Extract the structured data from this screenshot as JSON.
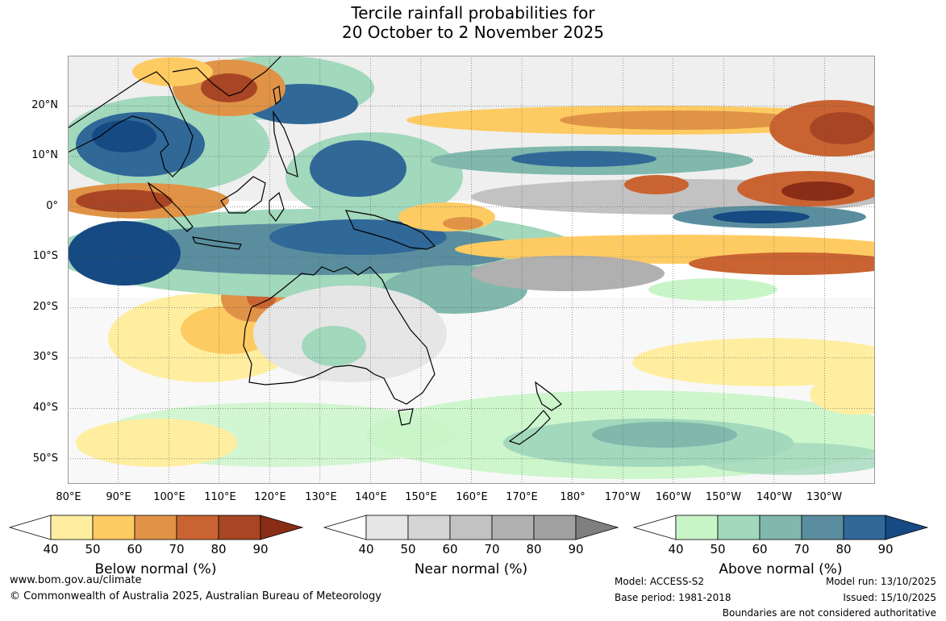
{
  "title": {
    "line1": "Tercile rainfall probabilities for",
    "line2": "20 October to 2 November 2025"
  },
  "axes": {
    "lat_labels": [
      "20°N",
      "10°N",
      "0°",
      "10°S",
      "20°S",
      "30°S",
      "40°S",
      "50°S"
    ],
    "lon_labels": [
      "80°E",
      "90°E",
      "100°E",
      "110°E",
      "120°E",
      "130°E",
      "140°E",
      "150°E",
      "160°E",
      "170°E",
      "180°",
      "170°W",
      "160°W",
      "150°W",
      "140°W",
      "130°W"
    ]
  },
  "map": {
    "extent": {
      "lon_min": 80,
      "lon_max": 240,
      "lat_min": -55,
      "lat_max": 30
    },
    "gridlines": true,
    "field_noise": [
      0,
      1,
      2,
      1,
      0,
      2,
      1,
      0,
      1,
      2
    ]
  },
  "colorbars": [
    {
      "id": "below",
      "title": "Below normal (%)",
      "ticks": [
        "40",
        "50",
        "60",
        "70",
        "80",
        "90"
      ],
      "colors": [
        "#ffffff",
        "#ffeea0",
        "#fecb62",
        "#e09346",
        "#c96432",
        "#a84524",
        "#8a2d16"
      ]
    },
    {
      "id": "near",
      "title": "Near normal (%)",
      "ticks": [
        "40",
        "50",
        "60",
        "70",
        "80",
        "90"
      ],
      "colors": [
        "#ffffff",
        "#e6e6e6",
        "#d4d4d4",
        "#c2c2c2",
        "#b0b0b0",
        "#a0a0a0",
        "#7f7f7f"
      ]
    },
    {
      "id": "above",
      "title": "Above normal (%)",
      "ticks": [
        "40",
        "50",
        "60",
        "70",
        "80",
        "90"
      ],
      "colors": [
        "#ffffff",
        "#c8f5c8",
        "#a2d8bc",
        "#80b8ac",
        "#5a8e9e",
        "#306898",
        "#164a82"
      ]
    }
  ],
  "footer": {
    "url": "www.bom.gov.au/climate",
    "copyright": "© Commonwealth of Australia 2025, Australian Bureau of Meteorology",
    "model": "Model: ACCESS-S2",
    "base_period": "Base period: 1981-2018",
    "model_run": "Model run: 13/10/2025",
    "issued": "Issued: 15/10/2025",
    "boundaries_note": "Boundaries are not considered authoritative"
  }
}
